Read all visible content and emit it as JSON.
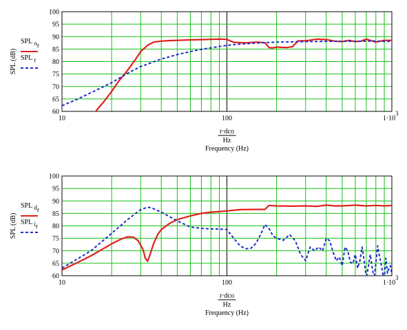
{
  "chart_data": [
    {
      "type": "line",
      "title": "",
      "x_scale": "log",
      "xlim": [
        10,
        1000
      ],
      "ylim": [
        60,
        100
      ],
      "grid": true,
      "x_ticks": [
        "10",
        "100",
        "1·10"
      ],
      "x_tick_superscript": "3",
      "y_ticks": [
        "60",
        "65",
        "70",
        "75",
        "80",
        "85",
        "90",
        "95",
        "100"
      ],
      "ylabel": "SPL (dB)",
      "xlabel_top": "r·dco",
      "xlabel_unit": "Hz",
      "xlabel": "Frequency (Hz)",
      "legend_placement": "left",
      "series": [
        {
          "name": "SPL",
          "sub": "o",
          "subsub": "r",
          "color": "#e0201b",
          "style": "solid",
          "x": [
            10,
            16,
            18,
            20,
            22,
            25,
            28,
            30,
            33,
            36,
            40,
            45,
            50,
            60,
            70,
            80,
            90,
            100,
            110,
            130,
            150,
            170,
            180,
            190,
            200,
            230,
            250,
            270,
            300,
            350,
            400,
            450,
            500,
            550,
            600,
            650,
            700,
            800,
            900,
            1000
          ],
          "y": [
            53,
            60,
            64,
            68,
            72,
            76.5,
            81,
            84,
            86.5,
            87.8,
            88.2,
            88.4,
            88.5,
            88.7,
            88.8,
            88.9,
            89,
            88.9,
            87.7,
            87.5,
            87.8,
            87.6,
            85.6,
            85.5,
            85.8,
            85.6,
            86,
            88.3,
            88.3,
            89,
            88.8,
            88.2,
            88,
            88.5,
            88,
            88.2,
            89,
            87.8,
            88.5,
            88.5
          ]
        },
        {
          "name": "SPL",
          "sub": "r",
          "subsub": "",
          "color": "#1d2cc7",
          "style": "dashed",
          "x": [
            10,
            12,
            15,
            20,
            25,
            30,
            40,
            50,
            60,
            70,
            80,
            100,
            120,
            150,
            200,
            250,
            300,
            400,
            500,
            600,
            700,
            800,
            900,
            1000
          ],
          "y": [
            62.3,
            64.5,
            67.5,
            71.5,
            75.3,
            78,
            81,
            82.8,
            84,
            84.9,
            85.5,
            86.5,
            87,
            87.4,
            87.8,
            87.9,
            88,
            88.1,
            88.1,
            88.1,
            88.2,
            88.2,
            88.1,
            88.1
          ]
        }
      ]
    },
    {
      "type": "line",
      "title": "",
      "x_scale": "log",
      "xlim": [
        10,
        1000
      ],
      "ylim": [
        60,
        100
      ],
      "grid": true,
      "x_ticks": [
        "10",
        "100",
        "1·10"
      ],
      "x_tick_superscript": "3",
      "y_ticks": [
        "60",
        "65",
        "70",
        "75",
        "80",
        "85",
        "90",
        "95",
        "100"
      ],
      "ylabel": "SPL (dB)",
      "xlabel_top": "r·dco",
      "xlabel_unit": "Hz",
      "xlabel": "Frequency (Hz)",
      "legend_placement": "left",
      "series": [
        {
          "name": "SPL",
          "sub": "d",
          "subsub": "r",
          "color": "#e0201b",
          "style": "solid",
          "x": [
            10,
            12,
            15,
            18,
            20,
            23,
            25,
            27,
            29,
            31,
            32,
            33,
            34,
            36,
            38,
            40,
            45,
            50,
            60,
            70,
            80,
            100,
            120,
            150,
            170,
            180,
            200,
            250,
            300,
            350,
            400,
            450,
            500,
            600,
            700,
            800,
            900,
            1000
          ],
          "y": [
            62.3,
            64.8,
            68,
            71,
            72.8,
            74.8,
            75.6,
            75.5,
            74,
            70.5,
            67,
            65.8,
            68,
            73,
            76.5,
            78.5,
            81,
            82.5,
            84,
            85,
            85.5,
            86,
            86.5,
            86.6,
            86.6,
            88.2,
            88,
            87.9,
            88,
            87.8,
            88.3,
            88,
            88,
            88.3,
            88,
            88.2,
            88,
            88.2
          ]
        },
        {
          "name": "SPL",
          "sub": "i",
          "subsub": "r",
          "color": "#1d2cc7",
          "style": "dashed",
          "x": [
            10,
            15,
            20,
            25,
            30,
            33,
            35,
            40,
            50,
            60,
            70,
            80,
            90,
            100,
            110,
            120,
            130,
            140,
            150,
            160,
            170,
            180,
            190,
            200,
            220,
            240,
            260,
            280,
            300,
            320,
            340,
            360,
            380,
            400,
            420,
            440,
            460,
            480,
            500,
            520,
            540,
            560,
            580,
            600,
            620,
            640,
            660,
            680,
            700,
            720,
            740,
            760,
            780,
            800,
            820,
            840,
            860,
            880,
            900,
            920,
            940,
            960,
            980,
            1000
          ],
          "y": [
            63,
            70,
            77,
            82.5,
            86.5,
            87.5,
            87.2,
            85.5,
            82,
            79.5,
            79,
            78.8,
            78.7,
            78.5,
            75,
            72,
            70.8,
            71,
            73,
            76.5,
            80.5,
            79,
            76,
            75,
            74.2,
            76.5,
            74,
            68.5,
            66,
            71.5,
            70,
            71.5,
            70,
            75,
            74,
            69.5,
            66,
            67.5,
            64,
            71.5,
            70,
            65.5,
            64.8,
            68.5,
            63,
            66,
            71.5,
            66,
            59,
            63.5,
            68.5,
            63,
            59,
            65,
            72,
            68,
            65,
            61,
            59,
            67,
            61,
            63,
            64,
            60.5
          ]
        }
      ]
    }
  ]
}
